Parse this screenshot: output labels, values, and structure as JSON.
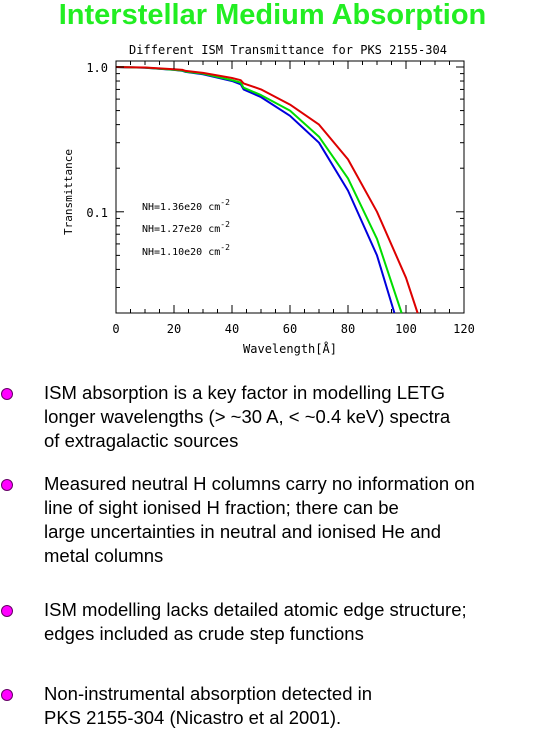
{
  "slide": {
    "title": "Interstellar Medium Absorption"
  },
  "chart_data": {
    "type": "line",
    "title": "Different ISM Transmittance for PKS 2155-304",
    "xlabel": "Wavelength[Å]",
    "ylabel": "Transmittance",
    "xlim": [
      0,
      120
    ],
    "ylim": [
      0.02,
      1.1
    ],
    "y_scale": "log",
    "x_ticks": [
      "0",
      "20",
      "40",
      "60",
      "80",
      "100",
      "120"
    ],
    "y_ticks": [
      "1.0",
      "0.1"
    ],
    "y_tick_values": [
      1.0,
      0.1
    ],
    "grid": false,
    "legend_placement": "inside-left",
    "series": [
      {
        "name": "NH=1.36e20 cm^-2",
        "color": "#0000dd",
        "x": [
          0,
          10,
          20,
          23,
          24,
          30,
          40,
          43,
          44,
          50,
          60,
          70,
          80,
          90,
          96
        ],
        "y": [
          1.0,
          0.988,
          0.955,
          0.94,
          0.925,
          0.89,
          0.8,
          0.76,
          0.7,
          0.62,
          0.46,
          0.3,
          0.14,
          0.05,
          0.02
        ]
      },
      {
        "name": "NH=1.27e20 cm^-2",
        "color": "#00dd00",
        "x": [
          0,
          10,
          20,
          23,
          24,
          30,
          40,
          43,
          44,
          50,
          60,
          70,
          80,
          90,
          98.5
        ],
        "y": [
          1.0,
          0.99,
          0.958,
          0.945,
          0.93,
          0.9,
          0.81,
          0.78,
          0.72,
          0.64,
          0.5,
          0.33,
          0.17,
          0.065,
          0.02
        ]
      },
      {
        "name": "NH=1.10e20 cm^-2",
        "color": "#dd0000",
        "x": [
          0,
          10,
          20,
          23,
          24,
          30,
          40,
          43,
          44,
          50,
          60,
          70,
          80,
          90,
          100,
          104
        ],
        "y": [
          1.0,
          0.992,
          0.965,
          0.955,
          0.94,
          0.91,
          0.84,
          0.81,
          0.77,
          0.7,
          0.55,
          0.4,
          0.23,
          0.1,
          0.035,
          0.02
        ]
      }
    ]
  },
  "bullets": [
    "ISM absorption is a key factor in modelling LETG\nlonger wavelengths (> ~30 A, < ~0.4 keV) spectra\nof extragalactic sources",
    "Measured neutral H columns carry no information on\nline of sight ionised H fraction; there can be\nlarge uncertainties in neutral and ionised He and\nmetal columns",
    "ISM modelling lacks detailed atomic edge structure;\nedges included as crude step functions",
    "Non-instrumental absorption detected in\nPKS 2155-304 (Nicastro et al 2001)."
  ],
  "colors": {
    "title": "#22ee22",
    "bullet": "#ff00ff"
  }
}
